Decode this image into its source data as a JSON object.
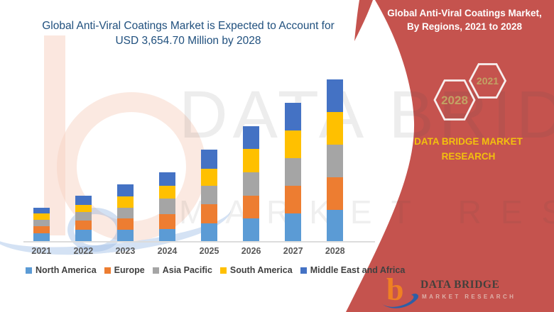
{
  "left_section": {
    "title_line1": "Global Anti-Viral Coatings Market is Expected to Account for",
    "title_line2": "USD 3,654.70 Million by 2028",
    "title_color": "#20507E"
  },
  "chart_data": {
    "type": "bar",
    "stacked": true,
    "title": "Global Anti-Viral Coatings Market, By Regions, 2021 to 2028",
    "unit": "USD Million",
    "categories": [
      "2021",
      "2022",
      "2023",
      "2024",
      "2025",
      "2026",
      "2027",
      "2028"
    ],
    "series": [
      {
        "name": "North America",
        "color": "#5B9BD5",
        "values": [
          170,
          262,
          258,
          280,
          400,
          508,
          625,
          705
        ]
      },
      {
        "name": "Europe",
        "color": "#ED7D31",
        "values": [
          160,
          200,
          252,
          332,
          426,
          517,
          620,
          736
        ]
      },
      {
        "name": "Asia Pacific",
        "color": "#A5A5A5",
        "values": [
          158,
          190,
          242,
          344,
          426,
          522,
          624,
          731
        ]
      },
      {
        "name": "South America",
        "color": "#FFC000",
        "values": [
          138,
          168,
          254,
          295,
          376,
          532,
          624,
          736
        ]
      },
      {
        "name": "Middle East and Africa",
        "color": "#4472C4",
        "values": [
          131,
          205,
          275,
          297,
          437,
          519,
          629,
          747
        ]
      }
    ],
    "totals": [
      757,
      1025,
      1281,
      1548,
      2065,
      2598,
      3122,
      3655
    ],
    "stated_value_2028": "USD 3,654.70 Million",
    "ylim": [
      0,
      3700
    ],
    "y_axis_visible": false,
    "gridlines": false,
    "legend_position": "bottom"
  },
  "right_panel": {
    "bg_color": "#C5534E",
    "heading_line1": "Global Anti-Viral Coatings Market,",
    "heading_line2": "By Regions, 2021 to 2028",
    "hexagons": [
      {
        "year": "2021"
      },
      {
        "year": "2028"
      }
    ],
    "hex_text_color": "#C2A264",
    "brand_line1": "DATA BRIDGE MARKET",
    "brand_line2": "RESEARCH",
    "brand_color": "#F2C00E"
  },
  "footer_logo": {
    "glyph": "b",
    "name": "DATA BRIDGE",
    "tagline": "MARKET RESEARCH"
  },
  "watermark": {
    "big_text": "DATA BRIDGE",
    "sub_text": "MARKET RESEARCH"
  }
}
